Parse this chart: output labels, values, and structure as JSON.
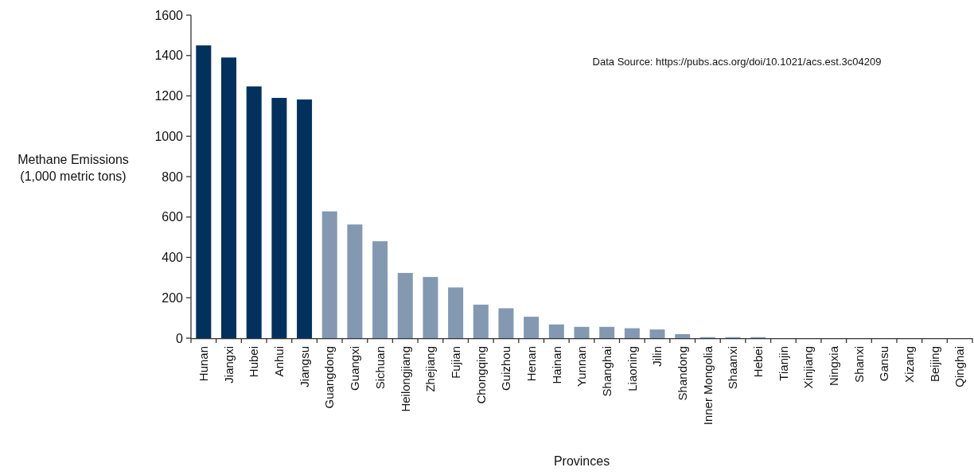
{
  "chart_data": {
    "type": "bar",
    "xlabel": "Provinces",
    "ylabel": "Methane Emissions (1,000 metric tons)",
    "annotations": [
      "Data Source: https://pubs.acs.org/doi/10.1021/acs.est.3c04209"
    ],
    "categories": [
      "Hunan",
      "Jiangxi",
      "Hubei",
      "Anhui",
      "Jiangsu",
      "Guangdong",
      "Guangxi",
      "Sichuan",
      "Heilongjiang",
      "Zhejiang",
      "Fujian",
      "Chongqing",
      "Guizhou",
      "Henan",
      "Hainan",
      "Yunnan",
      "Shanghai",
      "Liaoning",
      "Jilin",
      "Shandong",
      "Inner Mongolia",
      "Shaanxi",
      "Hebei",
      "Tianjin",
      "Xinjiang",
      "Ningxia",
      "Shanxi",
      "Gansu",
      "Xizang",
      "Beijing",
      "Qinghai"
    ],
    "values": [
      1450,
      1390,
      1247,
      1190,
      1182,
      628,
      563,
      480,
      323,
      303,
      251,
      166,
      148,
      106,
      68,
      56,
      56,
      49,
      43,
      20,
      5,
      5,
      5,
      0,
      0,
      0,
      0,
      0,
      0,
      0,
      0
    ],
    "colors": [
      "#03315e",
      "#03315e",
      "#03315e",
      "#03315e",
      "#03315e",
      "#8399b2",
      "#8399b2",
      "#8399b2",
      "#8399b2",
      "#8399b2",
      "#8399b2",
      "#8399b2",
      "#8399b2",
      "#8399b2",
      "#8399b2",
      "#8399b2",
      "#8399b2",
      "#8399b2",
      "#8399b2",
      "#8399b2",
      "#8399b2",
      "#8399b2",
      "#8399b2",
      "#8399b2",
      "#8399b2",
      "#8399b2",
      "#8399b2",
      "#8399b2",
      "#8399b2",
      "#8399b2",
      "#8399b2"
    ],
    "ylim": [
      0,
      1600
    ],
    "yticks": [
      0,
      200,
      400,
      600,
      800,
      1000,
      1200,
      1400,
      1600
    ],
    "grid": false
  }
}
